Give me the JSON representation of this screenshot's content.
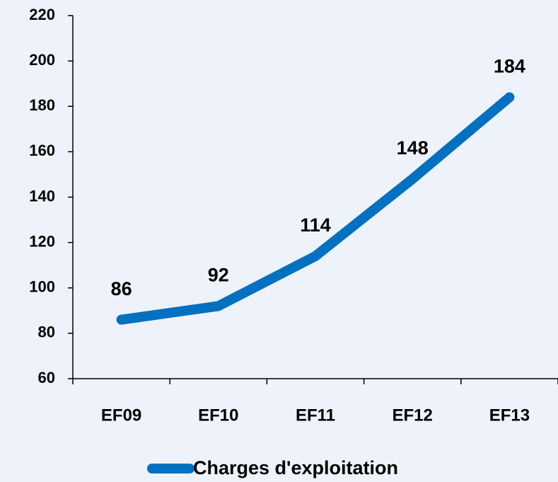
{
  "chart_data": {
    "type": "line",
    "categories": [
      "EF09",
      "EF10",
      "EF11",
      "EF12",
      "EF13"
    ],
    "series": [
      {
        "name": "Charges d'exploitation",
        "color": "#0070c0",
        "values": [
          86,
          92,
          114,
          148,
          184
        ]
      }
    ],
    "ylim": [
      60,
      220
    ],
    "yticks": [
      60,
      80,
      100,
      120,
      140,
      160,
      180,
      200,
      220
    ],
    "grid": false,
    "legend": "bottom"
  }
}
